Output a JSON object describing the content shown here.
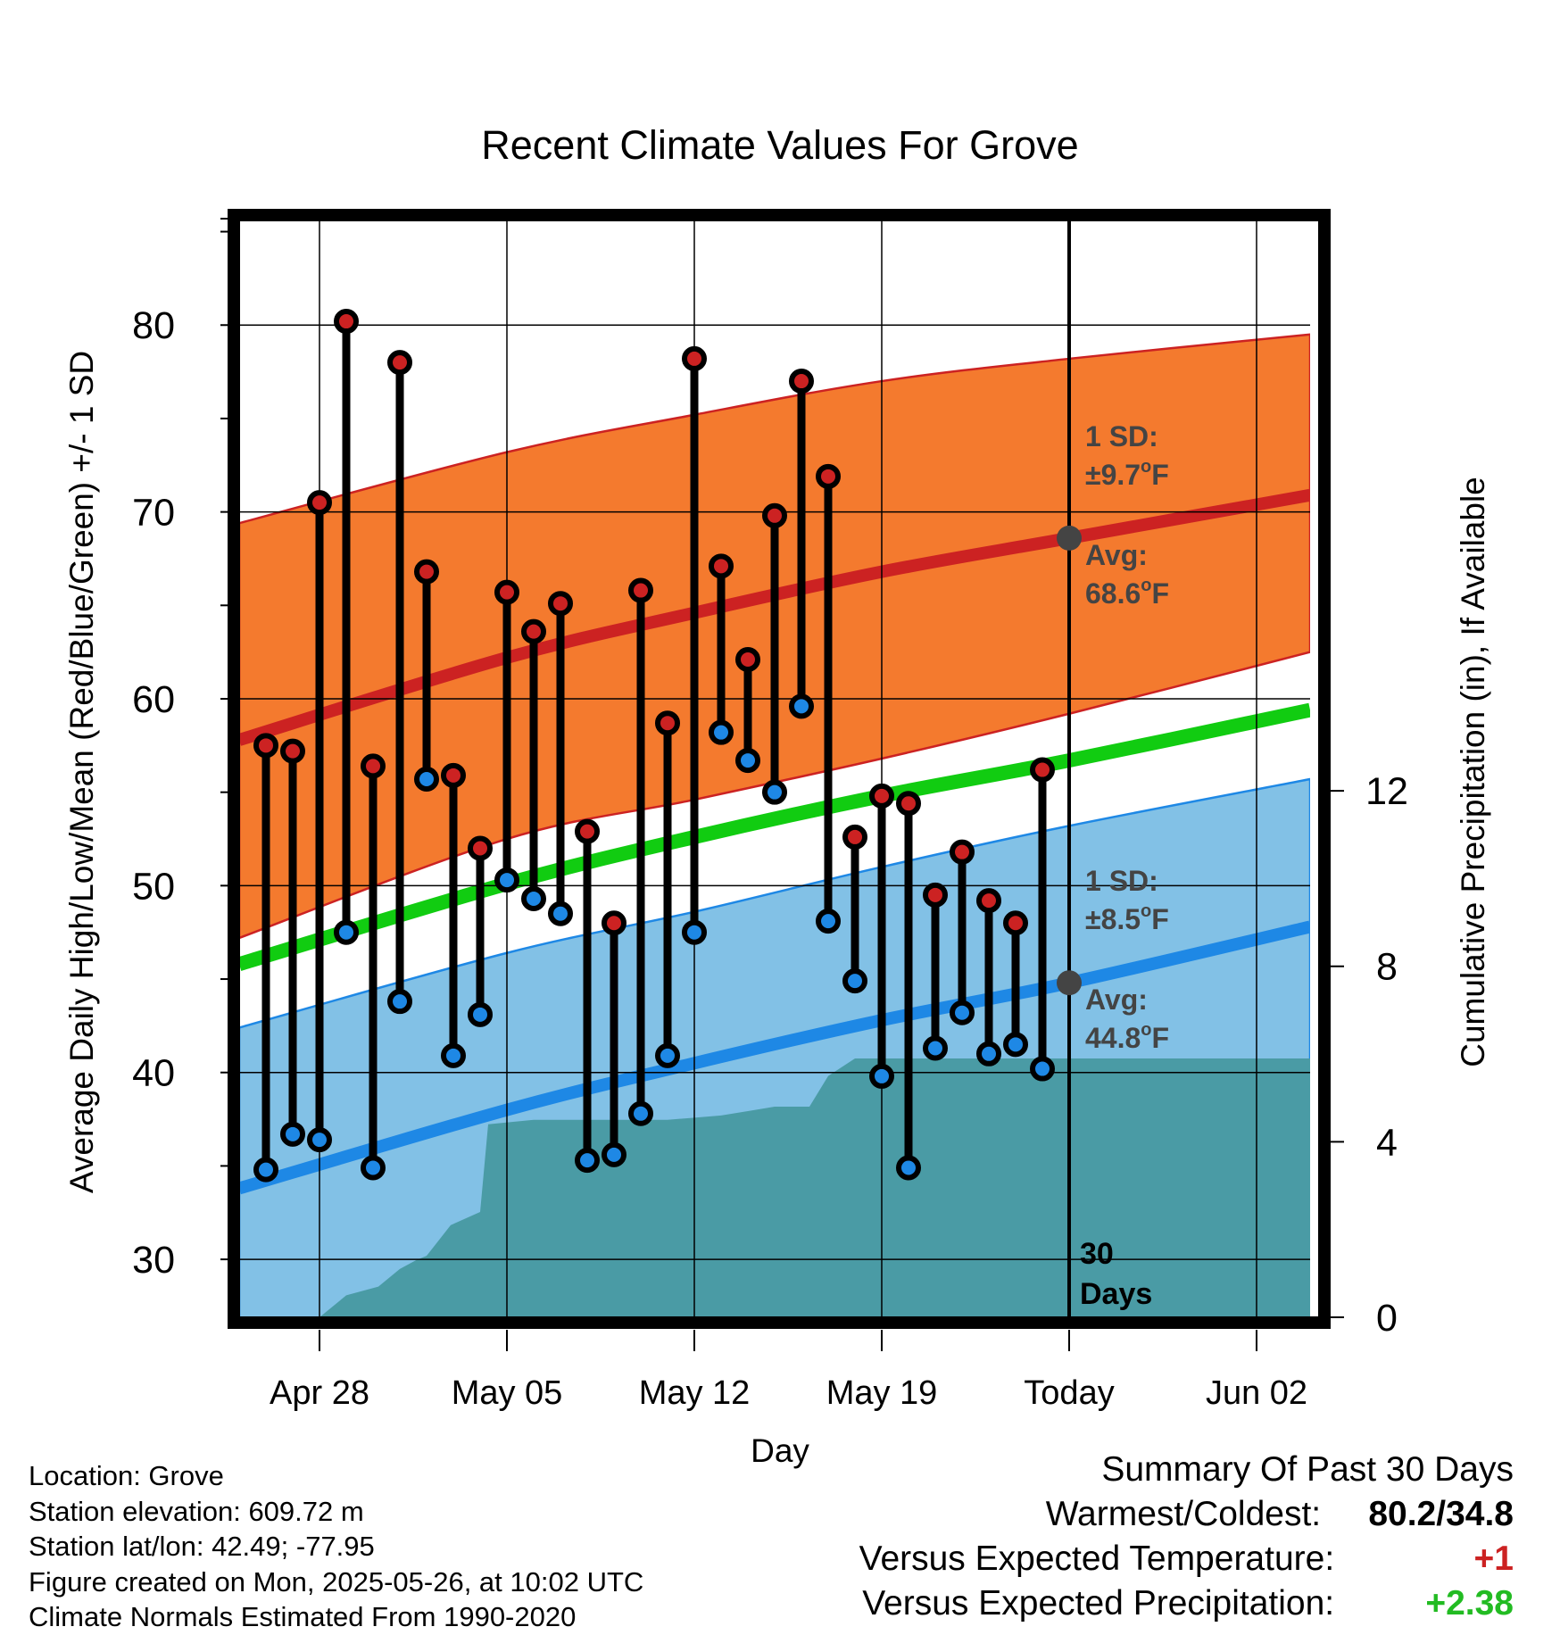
{
  "chart_data": {
    "type": "line",
    "title": "Recent Climate Values For Grove",
    "xlabel": "Day",
    "ylabel": "Average Daily High/Low/Mean (Red/Blue/Green) +/- 1 SD",
    "ylabel_right": "Cumulative Precipitation (in), If Available",
    "x_tick_labels": [
      "Apr 28",
      "May 05",
      "May 12",
      "May 19",
      "Today",
      "Jun 02"
    ],
    "x_tick_dates": [
      "2025-04-28",
      "2025-05-05",
      "2025-05-12",
      "2025-05-19",
      "2025-05-26",
      "2025-06-02"
    ],
    "xlim": [
      "2025-04-25",
      "2025-06-04"
    ],
    "ylim": [
      26.9,
      85.6
    ],
    "y_ticks": [
      30,
      40,
      50,
      60,
      70,
      80
    ],
    "y2lim": [
      0,
      25
    ],
    "y2_ticks": [
      0,
      4,
      8,
      12
    ],
    "today": "2025-05-26",
    "today_label": "30 Days",
    "grid": true,
    "normals": {
      "dates": [
        "2025-04-25",
        "2025-05-05",
        "2025-05-12",
        "2025-05-19",
        "2025-05-26",
        "2025-06-04"
      ],
      "high_mean": [
        57.8,
        62.2,
        64.6,
        66.8,
        68.6,
        70.9
      ],
      "high_sd_upper": [
        69.4,
        73.2,
        75.2,
        77.0,
        78.2,
        79.5
      ],
      "high_sd_lower": [
        47.2,
        52.5,
        54.6,
        56.8,
        59.2,
        62.5
      ],
      "low_mean": [
        33.8,
        38.0,
        40.5,
        42.8,
        44.8,
        47.8
      ],
      "low_sd_upper": [
        42.4,
        46.4,
        48.6,
        51.0,
        53.2,
        55.7
      ],
      "low_sd_lower": [
        25.5,
        29.5,
        32.0,
        34.5,
        36.3,
        39.3
      ],
      "mean_mean": [
        45.8,
        50.1,
        52.6,
        54.8,
        56.7,
        59.4
      ]
    },
    "high_annotation": {
      "sd_label": "1 SD:",
      "sd_value": "±9.7",
      "avg_label": "Avg:",
      "avg_value": "68.6",
      "unit": "F"
    },
    "low_annotation": {
      "sd_label": "1 SD:",
      "sd_value": "±8.5",
      "avg_label": "Avg:",
      "avg_value": "44.8",
      "unit": "F"
    },
    "degree_symbol": "o",
    "series": [
      {
        "name": "Daily High",
        "color": "#cc2222",
        "dates": [
          "2025-04-26",
          "2025-04-27",
          "2025-04-28",
          "2025-04-29",
          "2025-04-30",
          "2025-05-01",
          "2025-05-02",
          "2025-05-03",
          "2025-05-04",
          "2025-05-05",
          "2025-05-06",
          "2025-05-07",
          "2025-05-08",
          "2025-05-09",
          "2025-05-10",
          "2025-05-11",
          "2025-05-12",
          "2025-05-13",
          "2025-05-14",
          "2025-05-15",
          "2025-05-16",
          "2025-05-17",
          "2025-05-18",
          "2025-05-19",
          "2025-05-20",
          "2025-05-21",
          "2025-05-22",
          "2025-05-23",
          "2025-05-24",
          "2025-05-25"
        ],
        "values": [
          57.5,
          57.2,
          70.5,
          80.2,
          56.4,
          78.0,
          66.8,
          55.9,
          52.0,
          65.7,
          63.6,
          65.1,
          52.9,
          48.0,
          65.8,
          58.7,
          78.2,
          67.1,
          62.1,
          69.8,
          77.0,
          71.9,
          52.6,
          54.8,
          54.4,
          49.5,
          51.8,
          49.2,
          48.0,
          56.2
        ]
      },
      {
        "name": "Daily Low",
        "color": "#1e88e5",
        "dates": [
          "2025-04-26",
          "2025-04-27",
          "2025-04-28",
          "2025-04-29",
          "2025-04-30",
          "2025-05-01",
          "2025-05-02",
          "2025-05-03",
          "2025-05-04",
          "2025-05-05",
          "2025-05-06",
          "2025-05-07",
          "2025-05-08",
          "2025-05-09",
          "2025-05-10",
          "2025-05-11",
          "2025-05-12",
          "2025-05-13",
          "2025-05-14",
          "2025-05-15",
          "2025-05-16",
          "2025-05-17",
          "2025-05-18",
          "2025-05-19",
          "2025-05-20",
          "2025-05-21",
          "2025-05-22",
          "2025-05-23",
          "2025-05-24",
          "2025-05-25"
        ],
        "values": [
          34.8,
          36.7,
          36.4,
          47.5,
          34.9,
          43.8,
          55.7,
          40.9,
          43.1,
          50.3,
          49.3,
          48.5,
          35.3,
          35.6,
          37.8,
          40.9,
          47.5,
          58.2,
          56.7,
          55.0,
          59.6,
          48.1,
          44.9,
          39.8,
          34.9,
          41.3,
          43.2,
          41.0,
          41.5,
          40.2
        ]
      },
      {
        "name": "Cumulative Precipitation",
        "color": "#4a9ba5",
        "x_days": [
          0.0,
          0.0,
          2.0,
          3.0,
          3.6,
          4.2,
          5.0,
          5.6,
          6.0,
          6.9,
          8.0,
          8.3,
          10.0,
          11.0,
          13.0,
          14.0,
          15.0,
          16.0,
          17.0,
          18.0,
          19.0,
          20.0,
          20.3,
          21.0,
          22.0,
          24.0
        ],
        "x_unit": "days after 2025-04-26",
        "values": [
          0.0,
          0.0,
          0.0,
          0.5,
          0.6,
          0.7,
          1.1,
          1.3,
          1.4,
          2.1,
          2.4,
          4.4,
          4.5,
          4.5,
          4.5,
          4.5,
          4.5,
          4.55,
          4.6,
          4.7,
          4.8,
          4.8,
          4.8,
          5.5,
          5.9,
          5.9
        ]
      }
    ]
  },
  "info": {
    "location": "Location: Grove",
    "elevation": "Station elevation: 609.72 m",
    "latlon": "Station lat/lon: 42.49; -77.95",
    "created": "Figure created on Mon, 2025-05-26, at 10:02 UTC",
    "normals": "Climate Normals Estimated From 1990-2020"
  },
  "summary": {
    "title": "Summary Of Past 30 Days",
    "warm_cold_label": "Warmest/Coldest:",
    "warm_cold_value": "80.2/34.8",
    "temp_label": "Versus Expected Temperature:",
    "temp_value": "+1",
    "precip_label": "Versus Expected Precipitation:",
    "precip_value": "+2.38",
    "colors": {
      "temp": "#cc2222",
      "precip": "#22bb22"
    }
  },
  "colors": {
    "high_band": "#f47a2e",
    "high_line": "#cc2222",
    "low_band": "#82c1e6",
    "low_line": "#1e88e5",
    "mean_line": "#11cc11",
    "precip": "#4a9ba5",
    "annotation": "#444444"
  }
}
